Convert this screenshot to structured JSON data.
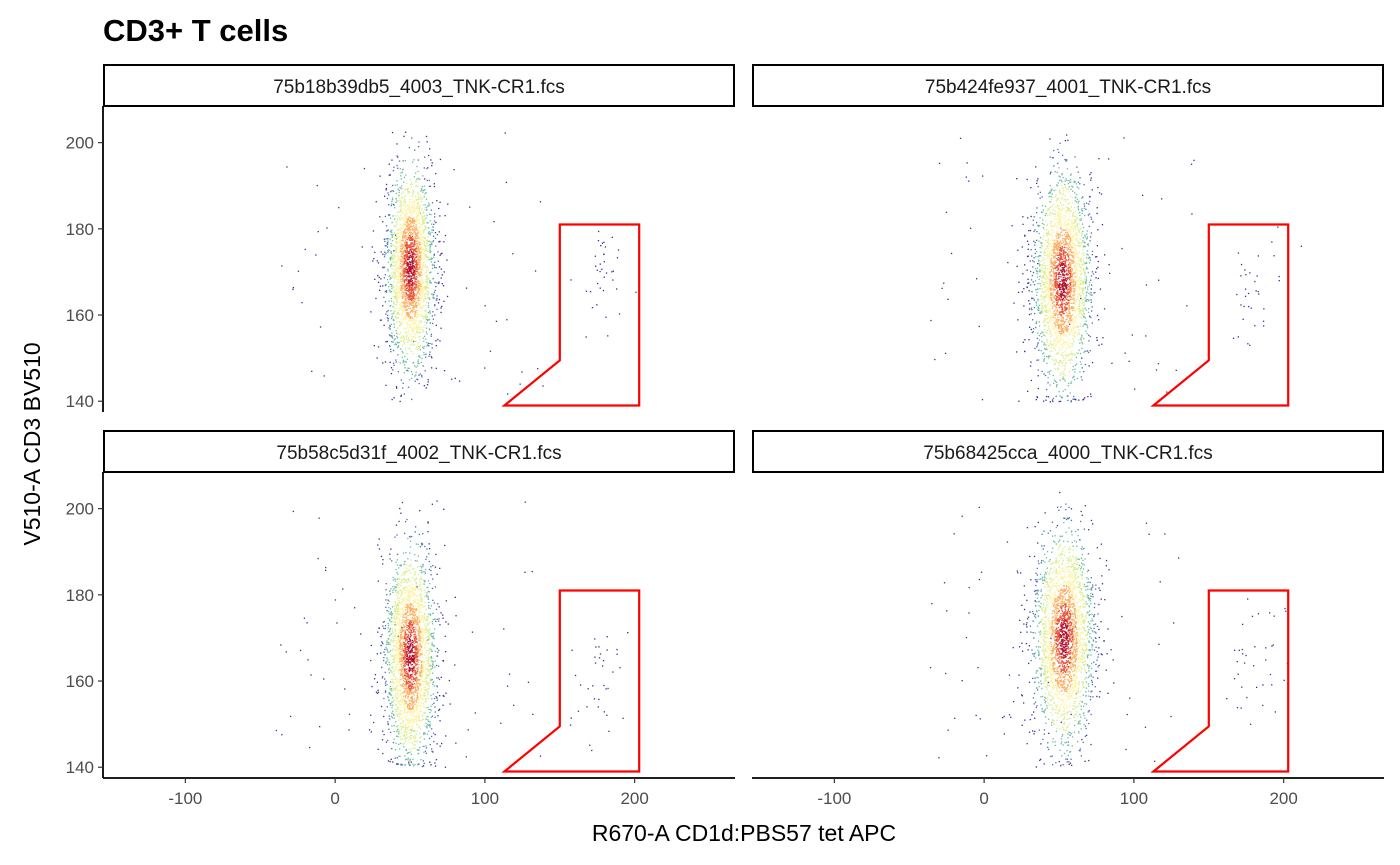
{
  "chart_data": {
    "type": "scatter",
    "subtype": "flow-cytometry density scatter (faceted 2x2)",
    "title": "CD3+ T cells",
    "xlabel": "R670-A CD1d:PBS57 tet APC",
    "ylabel": "V510-A CD3 BV510",
    "xlim": [
      -155,
      267
    ],
    "ylim": [
      137.5,
      208.5
    ],
    "xticks": [
      -100,
      0,
      100,
      200
    ],
    "yticks": [
      140,
      160,
      180,
      200
    ],
    "xtick_labels": [
      "-100",
      "0",
      "100",
      "200"
    ],
    "ytick_labels": [
      "140",
      "160",
      "180",
      "200"
    ],
    "grid": false,
    "legend": "none",
    "color_scale": "spectral density (blue = low, yellow = mid, red = high)",
    "density_colors": [
      "#3b2f8f",
      "#4a6fb0",
      "#6bbba4",
      "#d9ee8a",
      "#fdf2a0",
      "#fdae61",
      "#e8553a",
      "#b3122f"
    ],
    "gate_color": "#ff0000",
    "gate_polygon": [
      [
        113,
        139
      ],
      [
        150,
        149.5
      ],
      [
        150,
        181
      ],
      [
        203,
        181
      ],
      [
        203,
        139
      ]
    ],
    "panels": [
      {
        "label": "75b18b39db5_4003_TNK-CR1.fcs",
        "main_population": {
          "x_center": 50,
          "x_sd": 8,
          "y_center": 171,
          "y_sd": 10.5,
          "y_min": 140,
          "y_max": 204
        },
        "gate_events": {
          "x_center": 178,
          "y_center": 170
        }
      },
      {
        "label": "75b424fe937_4001_TNK-CR1.fcs",
        "main_population": {
          "x_center": 52,
          "x_sd": 9.5,
          "y_center": 168,
          "y_sd": 11,
          "y_min": 140,
          "y_max": 205
        },
        "gate_events": {
          "x_center": 182,
          "y_center": 168
        }
      },
      {
        "label": "75b58c5d31f_4002_TNK-CR1.fcs",
        "main_population": {
          "x_center": 50,
          "x_sd": 8.5,
          "y_center": 166,
          "y_sd": 11,
          "y_min": 140,
          "y_max": 204
        },
        "gate_events": {
          "x_center": 175,
          "y_center": 160
        }
      },
      {
        "label": "75b68425cca_4000_TNK-CR1.fcs",
        "main_population": {
          "x_center": 53,
          "x_sd": 10,
          "y_center": 170,
          "y_sd": 11,
          "y_min": 140,
          "y_max": 205
        },
        "gate_events": {
          "x_center": 180,
          "y_center": 165
        }
      }
    ]
  }
}
